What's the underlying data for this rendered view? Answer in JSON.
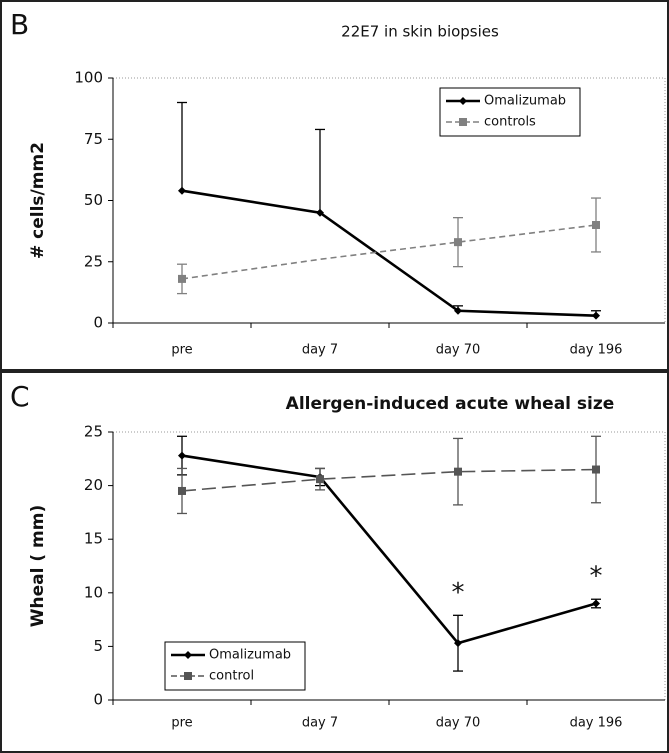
{
  "chart_data": [
    {
      "type": "line",
      "panel": "B",
      "title": "22E7 in skin biopsies",
      "ylabel": "# cells/mm2",
      "categories": [
        "pre",
        "day 7",
        "day 70",
        "day 196"
      ],
      "ylim": [
        0,
        100
      ],
      "yticks": [
        0,
        25,
        50,
        75,
        100
      ],
      "legend": "upper right",
      "series": [
        {
          "name": "Omalizumab",
          "color": "#000000",
          "dashed": false,
          "marker": "diamond",
          "error_side": "up",
          "values": [
            54,
            45,
            5,
            3
          ],
          "errors": [
            36,
            34,
            2,
            2
          ]
        },
        {
          "name": "controls",
          "color": "#808080",
          "dashed": true,
          "marker": "square",
          "error_side": "both",
          "values": [
            18,
            26,
            33,
            40
          ],
          "errors": [
            6,
            null,
            10,
            11
          ]
        }
      ]
    },
    {
      "type": "line",
      "panel": "C",
      "title": "Allergen-induced acute wheal size",
      "ylabel": "Wheal ( mm)",
      "categories": [
        "pre",
        "day 7",
        "day 70",
        "day 196"
      ],
      "ylim": [
        0,
        25
      ],
      "yticks": [
        0,
        5,
        10,
        15,
        20,
        25
      ],
      "legend": "lower left",
      "annotations": [
        {
          "text": "*",
          "category": 2
        },
        {
          "text": "*",
          "category": 3
        }
      ],
      "series": [
        {
          "name": "Omalizumab",
          "color": "#000000",
          "dashed": false,
          "marker": "diamond",
          "error_side": "both",
          "values": [
            22.8,
            20.8,
            5.3,
            9.0
          ],
          "errors": [
            1.8,
            0.8,
            2.6,
            0.4
          ]
        },
        {
          "name": "control",
          "color": "#555555",
          "dashed": true,
          "marker": "square",
          "error_side": "both",
          "values": [
            19.5,
            20.6,
            21.3,
            21.5
          ],
          "errors": [
            2.1,
            1.0,
            3.1,
            3.1
          ]
        }
      ]
    }
  ]
}
